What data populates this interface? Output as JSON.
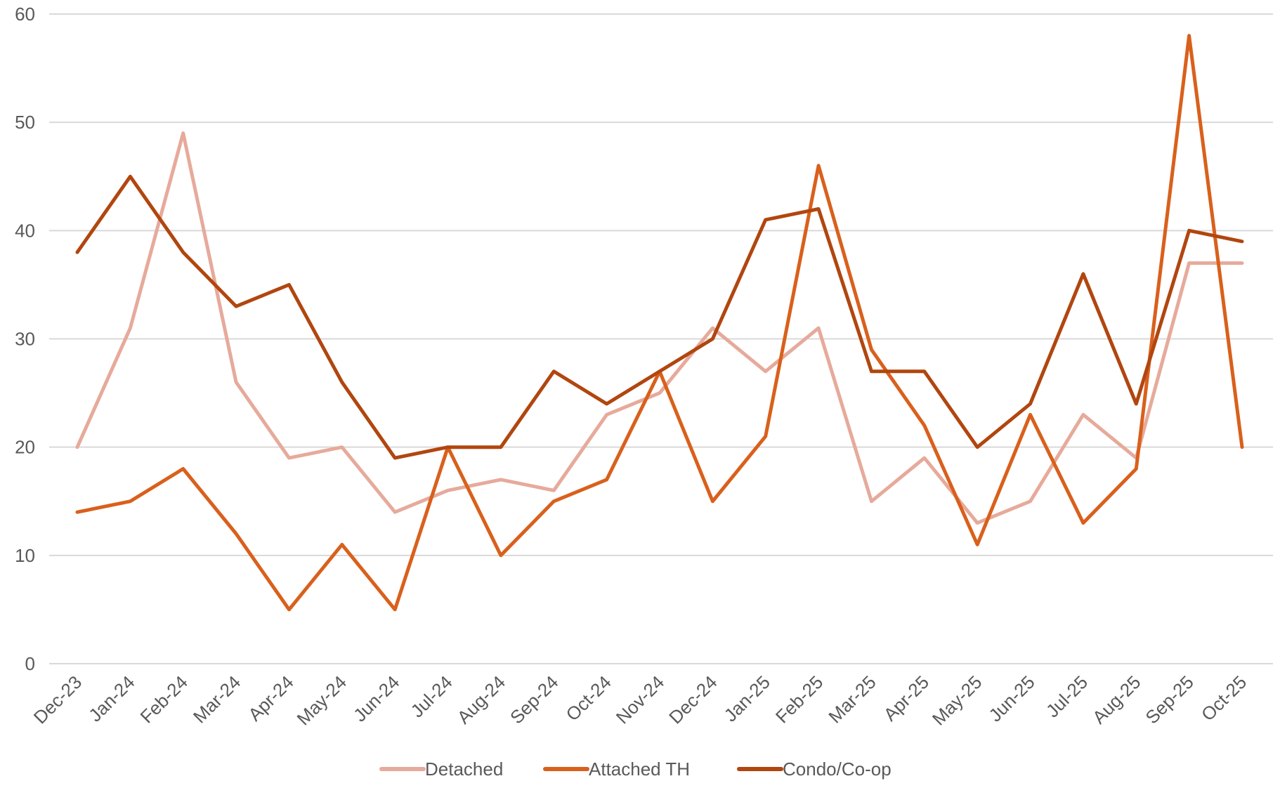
{
  "chart_data": {
    "type": "line",
    "title": "",
    "xlabel": "",
    "ylabel": "",
    "ylim": [
      0,
      60
    ],
    "yticks": [
      0,
      10,
      20,
      30,
      40,
      50,
      60
    ],
    "grid": true,
    "legend_position": "bottom",
    "categories": [
      "Dec-23",
      "Jan-24",
      "Feb-24",
      "Mar-24",
      "Apr-24",
      "May-24",
      "Jun-24",
      "Jul-24",
      "Aug-24",
      "Sep-24",
      "Oct-24",
      "Nov-24",
      "Dec-24",
      "Jan-25",
      "Feb-25",
      "Mar-25",
      "Apr-25",
      "May-25",
      "Jun-25",
      "Jul-25",
      "Aug-25",
      "Sep-25",
      "Oct-25"
    ],
    "series": [
      {
        "name": "Detached",
        "color": "#e6aa9b",
        "values": [
          20,
          31,
          49,
          26,
          19,
          20,
          14,
          16,
          17,
          16,
          23,
          25,
          31,
          27,
          31,
          15,
          19,
          13,
          15,
          23,
          19,
          37,
          37
        ]
      },
      {
        "name": "Attached TH",
        "color": "#d9601c",
        "values": [
          14,
          15,
          18,
          12,
          5,
          11,
          5,
          20,
          10,
          15,
          17,
          27,
          15,
          21,
          46,
          29,
          22,
          11,
          23,
          13,
          18,
          58,
          20
        ]
      },
      {
        "name": "Condo/Co-op",
        "color": "#b1460f",
        "values": [
          38,
          45,
          38,
          33,
          35,
          26,
          19,
          20,
          20,
          27,
          24,
          27,
          30,
          41,
          42,
          27,
          27,
          20,
          24,
          36,
          24,
          40,
          39
        ]
      }
    ]
  }
}
